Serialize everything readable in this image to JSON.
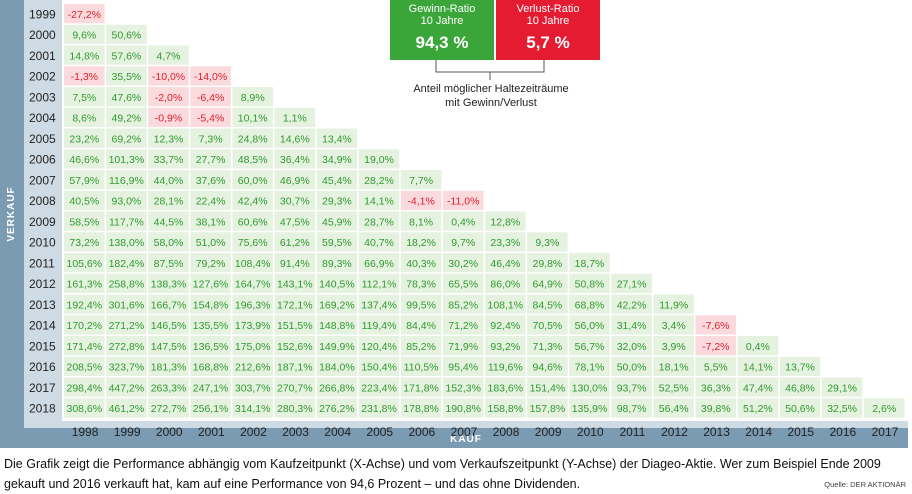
{
  "chart_data": {
    "type": "heatmap",
    "y_axis_label": "VERKAUF",
    "x_axis_label": "KAUF",
    "x_years": [
      "1998",
      "1999",
      "2000",
      "2001",
      "2002",
      "2003",
      "2004",
      "2005",
      "2006",
      "2007",
      "2008",
      "2009",
      "2010",
      "2011",
      "2012",
      "2013",
      "2014",
      "2015",
      "2016",
      "2017"
    ],
    "y_years": [
      "1999",
      "2000",
      "2001",
      "2002",
      "2003",
      "2004",
      "2005",
      "2006",
      "2007",
      "2008",
      "2009",
      "2010",
      "2011",
      "2012",
      "2013",
      "2014",
      "2015",
      "2016",
      "2017",
      "2018"
    ],
    "rows": [
      [
        "-27,2%"
      ],
      [
        "9,6%",
        "50,6%"
      ],
      [
        "14,8%",
        "57,6%",
        "4,7%"
      ],
      [
        "-1,3%",
        "35,5%",
        "-10,0%",
        "-14,0%"
      ],
      [
        "7,5%",
        "47,6%",
        "-2,0%",
        "-6,4%",
        "8,9%"
      ],
      [
        "8,6%",
        "49,2%",
        "-0,9%",
        "-5,4%",
        "10,1%",
        "1,1%"
      ],
      [
        "23,2%",
        "69,2%",
        "12,3%",
        "7,3%",
        "24,8%",
        "14,6%",
        "13,4%"
      ],
      [
        "46,6%",
        "101,3%",
        "33,7%",
        "27,7%",
        "48,5%",
        "36,4%",
        "34,9%",
        "19,0%"
      ],
      [
        "57,9%",
        "116,9%",
        "44,0%",
        "37,6%",
        "60,0%",
        "46,9%",
        "45,4%",
        "28,2%",
        "7,7%"
      ],
      [
        "40,5%",
        "93,0%",
        "28,1%",
        "22,4%",
        "42,4%",
        "30,7%",
        "29,3%",
        "14,1%",
        "-4,1%",
        "-11,0%"
      ],
      [
        "58,5%",
        "117,7%",
        "44,5%",
        "38,1%",
        "60,6%",
        "47,5%",
        "45,9%",
        "28,7%",
        "8,1%",
        "0,4%",
        "12,8%"
      ],
      [
        "73,2%",
        "138,0%",
        "58,0%",
        "51,0%",
        "75,6%",
        "61,2%",
        "59,5%",
        "40,7%",
        "18,2%",
        "9,7%",
        "23,3%",
        "9,3%"
      ],
      [
        "105,6%",
        "182,4%",
        "87,5%",
        "79,2%",
        "108,4%",
        "91,4%",
        "89,3%",
        "66,9%",
        "40,3%",
        "30,2%",
        "46,4%",
        "29,8%",
        "18,7%"
      ],
      [
        "161,3%",
        "258,8%",
        "138,3%",
        "127,6%",
        "164,7%",
        "143,1%",
        "140,5%",
        "112,1%",
        "78,3%",
        "65,5%",
        "86,0%",
        "64,9%",
        "50,8%",
        "27,1%"
      ],
      [
        "192,4%",
        "301,6%",
        "166,7%",
        "154,8%",
        "196,3%",
        "172,1%",
        "169,2%",
        "137,4%",
        "99,5%",
        "85,2%",
        "108,1%",
        "84,5%",
        "68,8%",
        "42,2%",
        "11,9%"
      ],
      [
        "170,2%",
        "271,2%",
        "146,5%",
        "135,5%",
        "173,9%",
        "151,5%",
        "148,8%",
        "119,4%",
        "84,4%",
        "71,2%",
        "92,4%",
        "70,5%",
        "56,0%",
        "31,4%",
        "3,4%",
        "-7,6%"
      ],
      [
        "171,4%",
        "272,8%",
        "147,5%",
        "136,5%",
        "175,0%",
        "152,6%",
        "149,9%",
        "120,4%",
        "85,2%",
        "71,9%",
        "93,2%",
        "71,3%",
        "56,7%",
        "32,0%",
        "3,9%",
        "-7,2%",
        "0,4%"
      ],
      [
        "208,5%",
        "323,7%",
        "181,3%",
        "168,8%",
        "212,6%",
        "187,1%",
        "184,0%",
        "150,4%",
        "110,5%",
        "95,4%",
        "119,6%",
        "94,6%",
        "78,1%",
        "50,0%",
        "18,1%",
        "5,5%",
        "14,1%",
        "13,7%"
      ],
      [
        "298,4%",
        "447,2%",
        "263,3%",
        "247,1%",
        "303,7%",
        "270,7%",
        "266,8%",
        "223,4%",
        "171,8%",
        "152,3%",
        "183,6%",
        "151,4%",
        "130,0%",
        "93,7%",
        "52,5%",
        "36,3%",
        "47,4%",
        "46,8%",
        "29,1%"
      ],
      [
        "308,6%",
        "461,2%",
        "272,7%",
        "256,1%",
        "314,1%",
        "280,3%",
        "276,2%",
        "231,8%",
        "178,8%",
        "190,8%",
        "158,8%",
        "157,8%",
        "135,9%",
        "98,7%",
        "56,4%",
        "39,8%",
        "51,2%",
        "50,6%",
        "32,5%",
        "2,6%"
      ]
    ],
    "colors": {
      "positive_bg": "#e6f2e0",
      "positive_text": "#2e9a2e",
      "negative_bg": "#fadadd",
      "negative_text": "#e0202e",
      "axis_band": "#cfdbe4",
      "axis_title_bg": "#7b9bb2"
    }
  },
  "boxes": {
    "gewinn": {
      "title1": "Gewinn-Ratio",
      "title2": "10 Jahre",
      "value": "94,3 %",
      "color": "#3aa63a"
    },
    "verlust": {
      "title1": "Verlust-Ratio",
      "title2": "10 Jahre",
      "value": "5,7 %",
      "color": "#e51b32"
    }
  },
  "annotation": {
    "line1": "Anteil möglicher Haltezeiträume",
    "line2": "mit Gewinn/Verlust"
  },
  "caption": "Die Grafik zeigt die Performance abhängig vom Kaufzeitpunkt (X-Achse) und vom Verkaufszeitpunkt (Y-Achse) der Diageo-Aktie. Wer zum Beispiel Ende 2009 gekauft und 2016 verkauft hat, kam auf eine Performance von 94,6 Prozent – und das ohne Dividenden.",
  "source": "Quelle: DER AKTIONÄR"
}
